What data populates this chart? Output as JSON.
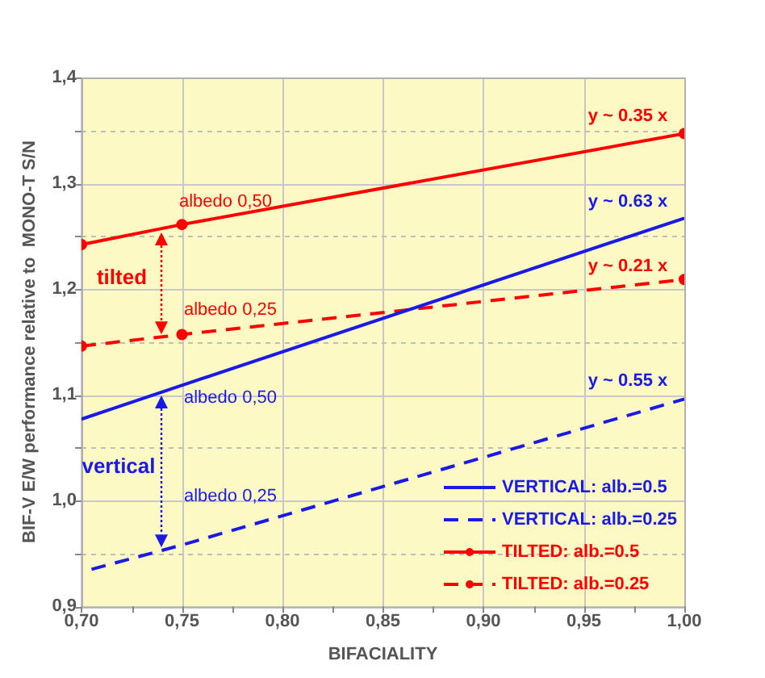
{
  "chart_data": {
    "type": "line",
    "xlabel": "BIFACIALITY",
    "ylabel": "BIF-V E/W performance relative to  MONO-T S/N",
    "xlim": [
      0.7,
      1.0
    ],
    "ylim": [
      0.9,
      1.4
    ],
    "xticks": [
      {
        "value": 0.7,
        "label": "0,70"
      },
      {
        "value": 0.725,
        "label": null
      },
      {
        "value": 0.75,
        "label": "0,75"
      },
      {
        "value": 0.775,
        "label": null
      },
      {
        "value": 0.8,
        "label": "0,80"
      },
      {
        "value": 0.825,
        "label": null
      },
      {
        "value": 0.85,
        "label": "0,85"
      },
      {
        "value": 0.875,
        "label": null
      },
      {
        "value": 0.9,
        "label": "0,90"
      },
      {
        "value": 0.925,
        "label": null
      },
      {
        "value": 0.95,
        "label": "0,95"
      },
      {
        "value": 0.975,
        "label": null
      },
      {
        "value": 1.0,
        "label": "1,00"
      }
    ],
    "yticks": [
      {
        "value": 0.9,
        "label": "0,9"
      },
      {
        "value": 0.95,
        "label": null
      },
      {
        "value": 1.0,
        "label": "1,0"
      },
      {
        "value": 1.05,
        "label": null
      },
      {
        "value": 1.1,
        "label": "1,1"
      },
      {
        "value": 1.15,
        "label": null
      },
      {
        "value": 1.2,
        "label": "1,2"
      },
      {
        "value": 1.25,
        "label": null
      },
      {
        "value": 1.3,
        "label": "1,3"
      },
      {
        "value": 1.35,
        "label": null
      },
      {
        "value": 1.4,
        "label": "1,4"
      }
    ],
    "grid": true,
    "legend": "bottom right",
    "series": [
      {
        "name": "VERTICAL: alb.=0.5",
        "type": "line",
        "color": "#1a1ae6",
        "line_style": "solid",
        "marker": "none",
        "x": [
          0.7,
          0.75,
          1.0
        ],
        "values": [
          1.077,
          1.109,
          1.267
        ]
      },
      {
        "name": "VERTICAL: alb.=0.25",
        "type": "line",
        "color": "#1a1ae6",
        "line_style": "dashed",
        "marker": "none",
        "x": [
          0.705,
          0.75,
          1.0
        ],
        "values": [
          0.935,
          0.958,
          1.096
        ]
      },
      {
        "name": "TILTED: alb.=0.5",
        "type": "line",
        "color": "#ff0000",
        "line_style": "solid",
        "marker": "circle",
        "x": [
          0.7,
          0.75,
          1.0
        ],
        "values": [
          1.242,
          1.261,
          1.347
        ]
      },
      {
        "name": "TILTED: alb.=0.25",
        "type": "line",
        "color": "#ff0000",
        "line_style": "dashed",
        "marker": "circle",
        "x": [
          0.7,
          0.75,
          1.0
        ],
        "values": [
          1.146,
          1.157,
          1.209
        ]
      }
    ],
    "annotations": [
      "y ~ 0.35 x",
      "y ~ 0.63 x",
      "y ~ 0.21 x",
      "y ~ 0.55 x",
      "albedo 0,50",
      "albedo 0,25",
      "tilted",
      "albedo 0,50",
      "vertical",
      "albedo 0,25"
    ]
  }
}
